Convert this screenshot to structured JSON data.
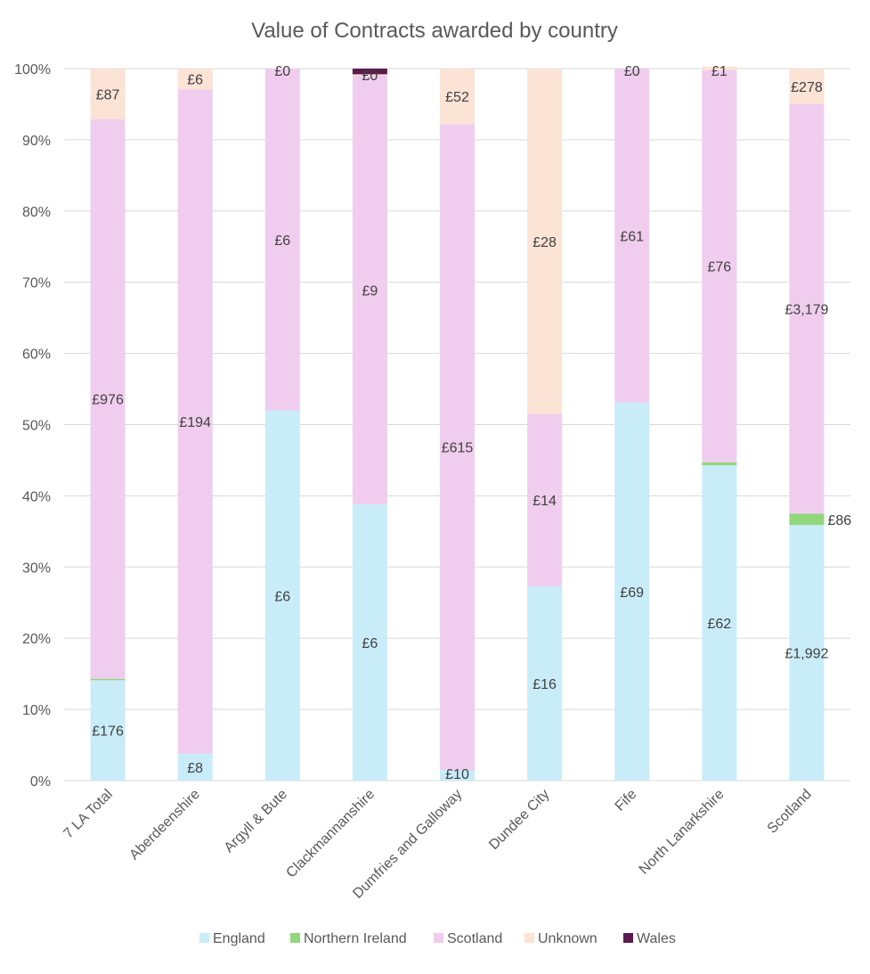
{
  "chart_data": {
    "type": "bar",
    "stacked": "percent",
    "title": "Value of Contracts awarded by country",
    "xlabel": "",
    "ylabel": "",
    "ylim": [
      0,
      100
    ],
    "y_ticks": [
      "0%",
      "10%",
      "20%",
      "30%",
      "40%",
      "50%",
      "60%",
      "70%",
      "80%",
      "90%",
      "100%"
    ],
    "grid": true,
    "legend_position": "bottom",
    "categories": [
      "7 LA Total",
      "Aberdeenshire",
      "Argyll & Bute",
      "Clackmannanshire",
      "Dumfries and Galloway",
      "Dundee City",
      "Fife",
      "North Lanarkshire",
      "Scotland"
    ],
    "series": [
      {
        "name": "England",
        "color": "#c9ecf9",
        "percents": [
          14.1,
          3.8,
          52.0,
          38.8,
          1.5,
          27.3,
          53.1,
          44.3,
          35.9
        ],
        "labels": [
          "£176",
          "£8",
          "£6",
          "£6",
          "£10",
          "£16",
          "£69",
          "£62",
          "£1,992"
        ]
      },
      {
        "name": "Northern Ireland",
        "color": "#92d77c",
        "percents": [
          0.2,
          0,
          0,
          0,
          0,
          0,
          0,
          0.4,
          1.6
        ],
        "labels": [
          "",
          "",
          "",
          "",
          "",
          "",
          "",
          "",
          "£86"
        ]
      },
      {
        "name": "Scotland",
        "color": "#f0cdee",
        "percents": [
          78.6,
          93.3,
          48.0,
          60.2,
          90.7,
          24.2,
          46.9,
          55.1,
          57.5
        ],
        "labels": [
          "£976",
          "£194",
          "£6",
          "£9",
          "£615",
          "£14",
          "£61",
          "£76",
          "£3,179"
        ]
      },
      {
        "name": "Unknown",
        "color": "#fbe3d6",
        "percents": [
          7.1,
          2.9,
          0,
          0.2,
          7.8,
          48.5,
          0,
          0.5,
          5.0
        ],
        "labels": [
          "£87",
          "£6",
          "£0",
          "£0",
          "£52",
          "£28",
          "£0",
          "£1",
          "£278"
        ]
      },
      {
        "name": "Wales",
        "color": "#5c1a4e",
        "percents": [
          0,
          0,
          0,
          0.8,
          0,
          0,
          0,
          0,
          0
        ],
        "labels": [
          "",
          "",
          "",
          "",
          "",
          "",
          "",
          "",
          ""
        ]
      }
    ]
  }
}
